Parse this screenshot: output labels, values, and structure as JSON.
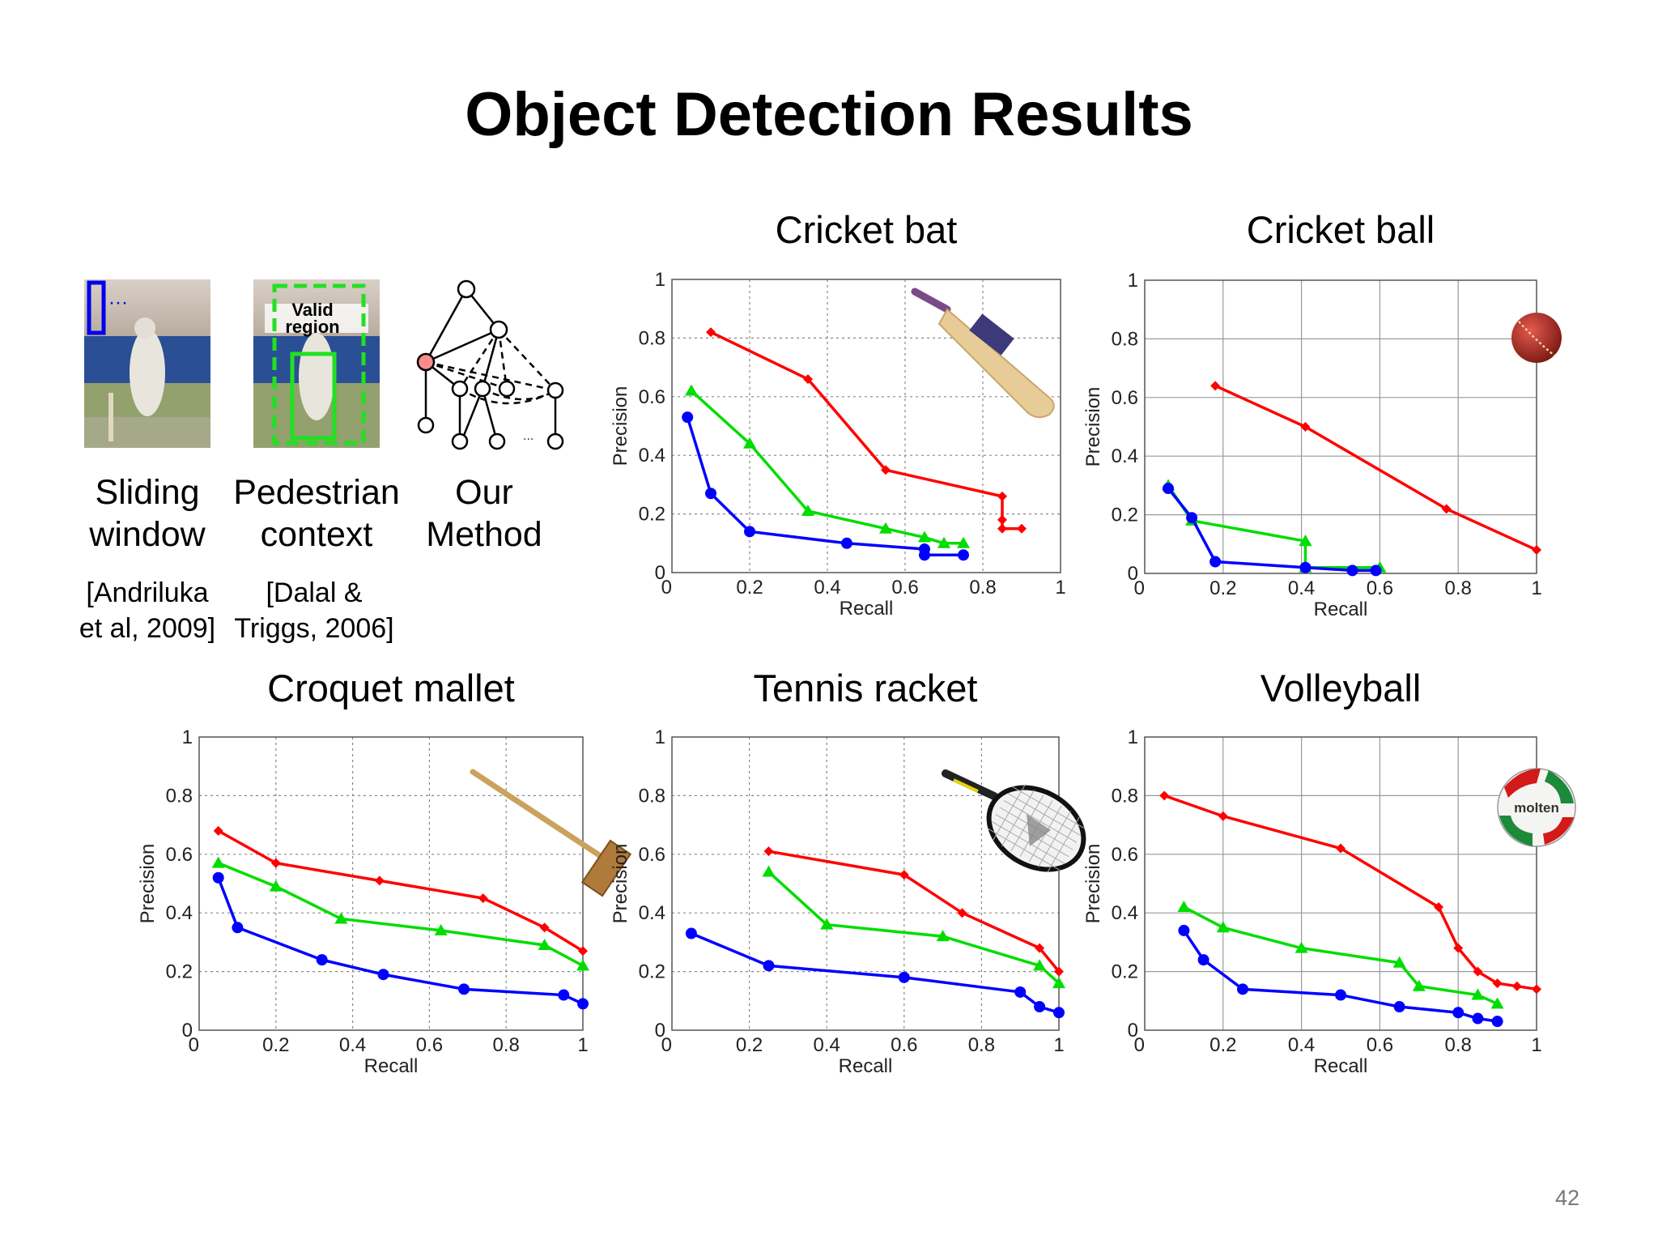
{
  "slide": {
    "title": "Object Detection Results",
    "page_number": "42"
  },
  "legend": [
    {
      "id": "sliding",
      "label_lines": [
        "Sliding",
        "window"
      ],
      "citation_lines": [
        "[Andriluka",
        "et al, 2009]"
      ],
      "color": "#0000ff"
    },
    {
      "id": "pedestrian",
      "label_lines": [
        "Pedestrian",
        "context"
      ],
      "citation_lines": [
        "[Dalal &",
        "Triggs, 2006]"
      ],
      "color": "#00dd00",
      "thumb_text": [
        "Valid",
        "region"
      ]
    },
    {
      "id": "ours",
      "label_lines": [
        "Our",
        "Method"
      ],
      "citation_lines": [],
      "color": "#ff0000",
      "thumb_text": [
        "..."
      ]
    }
  ],
  "chart_data": [
    {
      "type": "line",
      "title": "Cricket bat",
      "xlabel": "Recall",
      "ylabel": "Precision",
      "xlim": [
        0,
        1
      ],
      "ylim": [
        0,
        1
      ],
      "grid": true,
      "grid_style": "dotted",
      "xticks": [
        "0",
        "0.2",
        "0.4",
        "0.6",
        "0.8",
        "1"
      ],
      "yticks": [
        "0",
        "0.2",
        "0.4",
        "0.6",
        "0.8",
        "1"
      ],
      "icon": "cricket-bat-icon",
      "series": [
        {
          "color": "#ff0000",
          "marker": "diamond",
          "x": [
            0.1,
            0.35,
            0.55,
            0.85,
            0.85,
            0.85,
            0.9
          ],
          "y": [
            0.82,
            0.66,
            0.35,
            0.26,
            0.18,
            0.15,
            0.15
          ]
        },
        {
          "color": "#00dd00",
          "marker": "triangle",
          "x": [
            0.05,
            0.2,
            0.35,
            0.55,
            0.65,
            0.7,
            0.75
          ],
          "y": [
            0.62,
            0.44,
            0.21,
            0.15,
            0.12,
            0.1,
            0.1
          ]
        },
        {
          "color": "#0000ff",
          "marker": "circle",
          "x": [
            0.04,
            0.1,
            0.2,
            0.45,
            0.65,
            0.65,
            0.75
          ],
          "y": [
            0.53,
            0.27,
            0.14,
            0.1,
            0.08,
            0.06,
            0.06
          ]
        }
      ]
    },
    {
      "type": "line",
      "title": "Cricket ball",
      "xlabel": "Recall",
      "ylabel": "Precision",
      "xlim": [
        0,
        1
      ],
      "ylim": [
        0,
        1
      ],
      "grid": true,
      "grid_style": "solid",
      "xticks": [
        "0",
        "0.2",
        "0.4",
        "0.6",
        "0.8",
        "1"
      ],
      "yticks": [
        "0",
        "0.2",
        "0.4",
        "0.6",
        "0.8",
        "1"
      ],
      "icon": "cricket-ball-icon",
      "series": [
        {
          "color": "#ff0000",
          "marker": "diamond",
          "x": [
            0.18,
            0.41,
            0.77,
            1.0
          ],
          "y": [
            0.64,
            0.5,
            0.22,
            0.08
          ]
        },
        {
          "color": "#00dd00",
          "marker": "triangle",
          "x": [
            0.06,
            0.12,
            0.41,
            0.41,
            0.41,
            0.6
          ],
          "y": [
            0.3,
            0.18,
            0.11,
            0.11,
            0.02,
            0.02
          ]
        },
        {
          "color": "#0000ff",
          "marker": "circle",
          "x": [
            0.06,
            0.12,
            0.18,
            0.41,
            0.53,
            0.59
          ],
          "y": [
            0.29,
            0.19,
            0.04,
            0.02,
            0.01,
            0.01
          ]
        }
      ]
    },
    {
      "type": "line",
      "title": "Croquet mallet",
      "xlabel": "Recall",
      "ylabel": "Precision",
      "xlim": [
        0,
        1
      ],
      "ylim": [
        0,
        1
      ],
      "grid": true,
      "grid_style": "dotted",
      "xticks": [
        "0",
        "0.2",
        "0.4",
        "0.6",
        "0.8",
        "1"
      ],
      "yticks": [
        "0",
        "0.2",
        "0.4",
        "0.6",
        "0.8",
        "1"
      ],
      "icon": "croquet-mallet-icon",
      "series": [
        {
          "color": "#ff0000",
          "marker": "diamond",
          "x": [
            0.05,
            0.2,
            0.47,
            0.74,
            0.9,
            1.0
          ],
          "y": [
            0.68,
            0.57,
            0.51,
            0.45,
            0.35,
            0.27
          ]
        },
        {
          "color": "#00dd00",
          "marker": "triangle",
          "x": [
            0.05,
            0.2,
            0.37,
            0.63,
            0.9,
            1.0
          ],
          "y": [
            0.57,
            0.49,
            0.38,
            0.34,
            0.29,
            0.22
          ]
        },
        {
          "color": "#0000ff",
          "marker": "circle",
          "x": [
            0.05,
            0.1,
            0.32,
            0.48,
            0.69,
            0.95,
            1.0
          ],
          "y": [
            0.52,
            0.35,
            0.24,
            0.19,
            0.14,
            0.12,
            0.09
          ]
        }
      ]
    },
    {
      "type": "line",
      "title": "Tennis racket",
      "xlabel": "Recall",
      "ylabel": "Precision",
      "xlim": [
        0,
        1
      ],
      "ylim": [
        0,
        1
      ],
      "grid": true,
      "grid_style": "dotted",
      "xticks": [
        "0",
        "0.2",
        "0.4",
        "0.6",
        "0.8",
        "1"
      ],
      "yticks": [
        "0",
        "0.2",
        "0.4",
        "0.6",
        "0.8",
        "1"
      ],
      "icon": "tennis-racket-icon",
      "series": [
        {
          "color": "#ff0000",
          "marker": "diamond",
          "x": [
            0.25,
            0.6,
            0.75,
            0.95,
            1.0
          ],
          "y": [
            0.61,
            0.53,
            0.4,
            0.28,
            0.2
          ]
        },
        {
          "color": "#00dd00",
          "marker": "triangle",
          "x": [
            0.25,
            0.4,
            0.7,
            0.95,
            1.0
          ],
          "y": [
            0.54,
            0.36,
            0.32,
            0.22,
            0.16
          ]
        },
        {
          "color": "#0000ff",
          "marker": "circle",
          "x": [
            0.05,
            0.25,
            0.6,
            0.9,
            0.95,
            1.0
          ],
          "y": [
            0.33,
            0.22,
            0.18,
            0.13,
            0.08,
            0.06
          ]
        }
      ]
    },
    {
      "type": "line",
      "title": "Volleyball",
      "xlabel": "Recall",
      "ylabel": "Precision",
      "xlim": [
        0,
        1
      ],
      "ylim": [
        0,
        1
      ],
      "grid": true,
      "grid_style": "solid",
      "xticks": [
        "0",
        "0.2",
        "0.4",
        "0.6",
        "0.8",
        "1"
      ],
      "yticks": [
        "0",
        "0.2",
        "0.4",
        "0.6",
        "0.8",
        "1"
      ],
      "icon": "volleyball-icon",
      "icon_text": "molten",
      "series": [
        {
          "color": "#ff0000",
          "marker": "diamond",
          "x": [
            0.05,
            0.2,
            0.5,
            0.75,
            0.8,
            0.85,
            0.9,
            0.95,
            1.0
          ],
          "y": [
            0.8,
            0.73,
            0.62,
            0.42,
            0.28,
            0.2,
            0.16,
            0.15,
            0.14
          ]
        },
        {
          "color": "#00dd00",
          "marker": "triangle",
          "x": [
            0.1,
            0.2,
            0.4,
            0.65,
            0.7,
            0.85,
            0.9
          ],
          "y": [
            0.42,
            0.35,
            0.28,
            0.23,
            0.15,
            0.12,
            0.09
          ]
        },
        {
          "color": "#0000ff",
          "marker": "circle",
          "x": [
            0.1,
            0.15,
            0.25,
            0.5,
            0.65,
            0.8,
            0.85,
            0.9
          ],
          "y": [
            0.34,
            0.24,
            0.14,
            0.12,
            0.08,
            0.06,
            0.04,
            0.03
          ]
        }
      ]
    }
  ]
}
